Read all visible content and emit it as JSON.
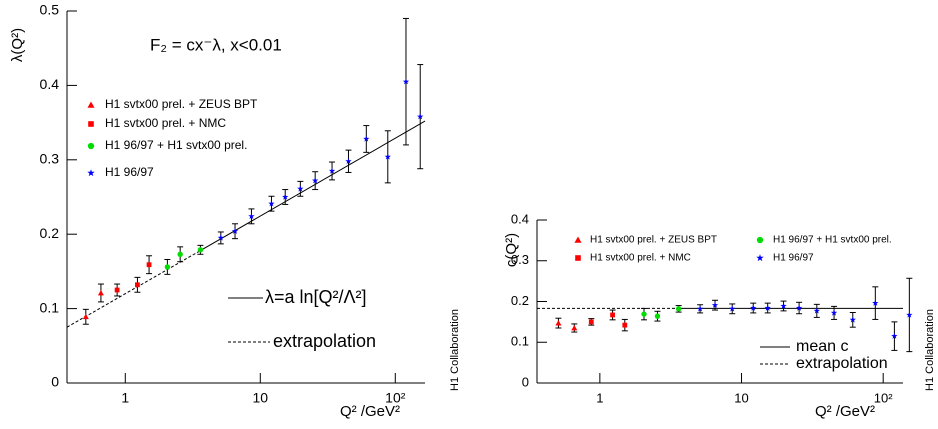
{
  "chart_data": [
    {
      "type": "scatter",
      "xscale": "log",
      "ylabel": "λ(Q²)",
      "xlabel": "Q² /GeV²",
      "annotation": "F₂ = cx⁻λ,  x<0.01",
      "side_text": "H1 Collaboration",
      "xlim": [
        0.37,
        166
      ],
      "ylim": [
        0,
        0.5
      ],
      "xticks": [
        1,
        10,
        {
          "value": 100,
          "label": "10²"
        }
      ],
      "yticks": [
        0,
        0.1,
        0.2,
        0.3,
        0.4,
        0.5
      ],
      "series": [
        {
          "name": "H1 svtx00 prel. + ZEUS BPT",
          "color": "#ff0000",
          "marker": "triangle",
          "x": [
            0.51,
            0.66
          ],
          "values": [
            0.089,
            0.121
          ],
          "errors": [
            0.01,
            0.012
          ]
        },
        {
          "name": "H1 svtx00 prel. + NMC",
          "color": "#ff0000",
          "marker": "square",
          "x": [
            0.87,
            1.23,
            1.5
          ],
          "values": [
            0.125,
            0.132,
            0.159
          ],
          "errors": [
            0.008,
            0.01,
            0.012
          ]
        },
        {
          "name": "H1 96/97 + H1 svtx00 prel.",
          "color": "#00dd00",
          "marker": "circle",
          "x": [
            2.05,
            2.55,
            3.6
          ],
          "values": [
            0.156,
            0.173,
            0.179
          ],
          "errors": [
            0.01,
            0.01,
            0.006
          ]
        },
        {
          "name": "H1 96/97",
          "color": "#0000ff",
          "marker": "star",
          "x": [
            5.1,
            6.5,
            8.6,
            12.1,
            15.3,
            19.8,
            25.5,
            34,
            45,
            61,
            88,
            120,
            153
          ],
          "values": [
            0.195,
            0.204,
            0.224,
            0.241,
            0.25,
            0.261,
            0.272,
            0.285,
            0.298,
            0.328,
            0.304,
            0.405,
            0.358
          ],
          "errors": [
            0.008,
            0.01,
            0.01,
            0.01,
            0.01,
            0.01,
            0.012,
            0.012,
            0.015,
            0.018,
            0.035,
            0.085,
            0.07
          ]
        }
      ],
      "lines": [
        {
          "name": "λ=a ln[Q²/Λ²]",
          "style": "solid",
          "x": [
            3.6,
            166
          ],
          "values": [
            0.178,
            0.352
          ]
        },
        {
          "name": "extrapolation",
          "style": "dashed",
          "x": [
            0.37,
            3.6
          ],
          "values": [
            0.075,
            0.178
          ]
        }
      ]
    },
    {
      "type": "scatter",
      "xscale": "log",
      "ylabel": "c(Q²)",
      "xlabel": "Q² /GeV²",
      "side_text": "H1 Collaboration",
      "xlim": [
        0.36,
        138
      ],
      "ylim": [
        0,
        0.4
      ],
      "xticks": [
        1,
        10,
        {
          "value": 100,
          "label": "10²"
        }
      ],
      "yticks": [
        0,
        0.1,
        0.2,
        0.3,
        0.4
      ],
      "series": [
        {
          "name": "H1 svtx00 prel. + ZEUS BPT",
          "color": "#ff0000",
          "marker": "triangle",
          "x": [
            0.51,
            0.66
          ],
          "values": [
            0.147,
            0.135
          ],
          "errors": [
            0.012,
            0.01
          ]
        },
        {
          "name": "H1 svtx00 prel. + NMC",
          "color": "#ff0000",
          "marker": "square",
          "x": [
            0.87,
            1.23,
            1.5
          ],
          "values": [
            0.15,
            0.167,
            0.142
          ],
          "errors": [
            0.008,
            0.012,
            0.014
          ]
        },
        {
          "name": "H1 96/97 + H1 svtx00 prel.",
          "color": "#00dd00",
          "marker": "circle",
          "x": [
            2.05,
            2.55,
            3.6
          ],
          "values": [
            0.169,
            0.164,
            0.182
          ],
          "errors": [
            0.014,
            0.012,
            0.008
          ]
        },
        {
          "name": "H1 96/97",
          "color": "#0000ff",
          "marker": "star",
          "x": [
            5.1,
            6.5,
            8.6,
            12.1,
            15.3,
            19.8,
            25.5,
            34,
            45,
            61,
            88,
            120,
            153
          ],
          "values": [
            0.182,
            0.191,
            0.182,
            0.184,
            0.184,
            0.189,
            0.184,
            0.177,
            0.172,
            0.155,
            0.196,
            0.115,
            0.167
          ],
          "errors": [
            0.01,
            0.012,
            0.012,
            0.012,
            0.012,
            0.012,
            0.014,
            0.016,
            0.016,
            0.018,
            0.04,
            0.035,
            0.09
          ]
        }
      ],
      "lines": [
        {
          "name": "mean c",
          "style": "solid",
          "x": [
            3.6,
            138
          ],
          "values": [
            0.183,
            0.183
          ]
        },
        {
          "name": "extrapolation",
          "style": "dashed",
          "x": [
            0.36,
            3.6
          ],
          "values": [
            0.183,
            0.183
          ]
        }
      ]
    }
  ]
}
